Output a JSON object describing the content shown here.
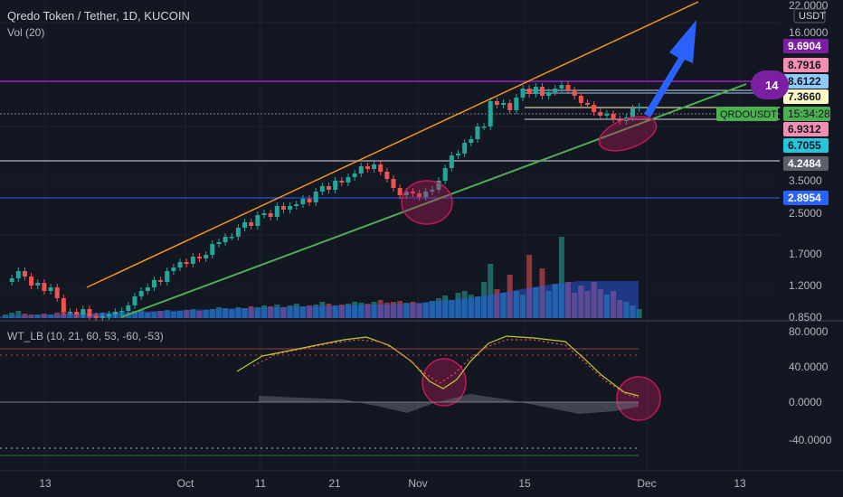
{
  "header": {
    "symbol": "Qredo Token / Tether, 1D, KUCOIN",
    "volume": "Vol (20)",
    "oscillator": "WT_LB (10, 21, 60, 53, -60, -53)"
  },
  "price_axis": {
    "currency": "USDT",
    "ticks": [
      "22.0000",
      "16.0000",
      "3.5000",
      "2.5000",
      "1.7000",
      "1.2000",
      "0.8500"
    ],
    "labels": [
      {
        "text": "9.6904",
        "bg": "#7b1fa2",
        "fg": "#ffffff"
      },
      {
        "text": "8.7916",
        "bg": "#f48fb1",
        "fg": "#131722"
      },
      {
        "text": "8.6122",
        "bg": "#90caf9",
        "fg": "#131722"
      },
      {
        "text": "7.3660",
        "bg": "#fff9c4",
        "fg": "#131722"
      },
      {
        "text": "6.9312",
        "bg": "#f48fb1",
        "fg": "#131722"
      },
      {
        "text": "6.7055",
        "bg": "#26c6da",
        "fg": "#131722"
      },
      {
        "text": "4.2484",
        "bg": "#5d606b",
        "fg": "#ffffff"
      },
      {
        "text": "2.8954",
        "bg": "#2962ff",
        "fg": "#ffffff"
      }
    ],
    "ticker": "QRDOUSDT",
    "countdown": "15:34:28",
    "level_label": "14"
  },
  "oscillator_axis": {
    "ticks": [
      "80.0000",
      "40.0000",
      "0.0000",
      "-40.0000"
    ]
  },
  "time_axis": {
    "ticks": [
      "13",
      "Oct",
      "11",
      "21",
      "Nov",
      "15",
      "Dec",
      "13"
    ]
  },
  "chart_data": {
    "type": "candlestick",
    "symbol": "QRDOUSDT",
    "interval": "1D",
    "exchange": "KUCOIN",
    "horizontal_levels": [
      9.6904,
      8.6122,
      7.366,
      4.2484,
      2.8954
    ],
    "last_price": 6.9312,
    "oscillator": {
      "name": "WT_LB",
      "params": [
        10,
        21,
        60,
        53,
        -60,
        -53
      ],
      "overbought": 60,
      "oversold": -53
    }
  },
  "colors": {
    "background": "#131722",
    "up": "#26a69a",
    "down": "#ef5350",
    "channel_upper": "#f7931a",
    "channel_lower": "#4caf50",
    "arrow": "#2962ff",
    "highlight": "#c2185b"
  }
}
